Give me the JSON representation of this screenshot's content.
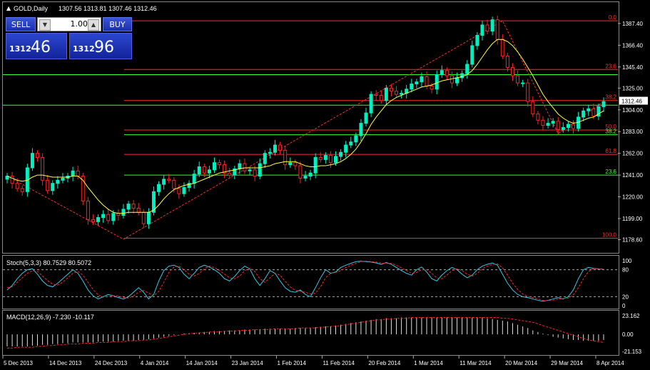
{
  "chart_data": {
    "type": "candlestick",
    "symbol_label": "GOLD,Daily",
    "ohlc_header": "1307.56 1313.81 1307.46 1312.46",
    "price_axis": {
      "min": 1170,
      "max": 1397,
      "ticks": [
        "1387.40",
        "1366.40",
        "1345.40",
        "1325.00",
        "1304.00",
        "1283.00",
        "1262.00",
        "1241.00",
        "1220.00",
        "1199.00",
        "1178.60"
      ]
    },
    "current_price_label": "1312.46",
    "date_labels": [
      "5 Dec 2013",
      "14 Dec 2013",
      "24 Dec 2013",
      "4 Jan 2014",
      "14 Jan 2014",
      "23 Jan 2014",
      "1 Feb 2014",
      "11 Feb 2014",
      "20 Feb 2014",
      "1 Mar 2014",
      "11 Mar 2014",
      "20 Mar 2014",
      "29 Mar 2014",
      "8 Apr 2014"
    ],
    "closes": [
      1240,
      1233,
      1228,
      1225,
      1248,
      1262,
      1258,
      1236,
      1226,
      1233,
      1236,
      1238,
      1240,
      1245,
      1240,
      1216,
      1198,
      1196,
      1200,
      1203,
      1197,
      1204,
      1202,
      1208,
      1213,
      1209,
      1205,
      1194,
      1205,
      1225,
      1232,
      1237,
      1236,
      1228,
      1223,
      1229,
      1233,
      1242,
      1249,
      1243,
      1246,
      1253,
      1251,
      1243,
      1241,
      1247,
      1252,
      1245,
      1246,
      1240,
      1252,
      1262,
      1263,
      1270,
      1265,
      1251,
      1253,
      1250,
      1238,
      1240,
      1243,
      1258,
      1256,
      1260,
      1253,
      1259,
      1263,
      1270,
      1273,
      1279,
      1291,
      1301,
      1319,
      1318,
      1313,
      1325,
      1322,
      1319,
      1320,
      1324,
      1329,
      1331,
      1336,
      1327,
      1324,
      1338,
      1342,
      1337,
      1330,
      1335,
      1339,
      1348,
      1366,
      1376,
      1386,
      1380,
      1391,
      1372,
      1356,
      1345,
      1337,
      1330,
      1330,
      1312,
      1300,
      1294,
      1289,
      1291,
      1293,
      1285,
      1287,
      1290,
      1286,
      1297,
      1303,
      1305,
      1298,
      1307,
      1312
    ],
    "ma": [
      1240,
      1238,
      1236,
      1235,
      1236,
      1239,
      1241,
      1241,
      1240,
      1239,
      1239,
      1239,
      1239,
      1240,
      1240,
      1236,
      1229,
      1223,
      1217,
      1212,
      1208,
      1205,
      1204,
      1204,
      1205,
      1205,
      1205,
      1205,
      1205,
      1207,
      1212,
      1218,
      1223,
      1227,
      1229,
      1231,
      1232,
      1233,
      1235,
      1237,
      1239,
      1241,
      1243,
      1244,
      1245,
      1246,
      1247,
      1248,
      1248,
      1248,
      1248,
      1249,
      1250,
      1252,
      1253,
      1254,
      1254,
      1254,
      1252,
      1250,
      1249,
      1249,
      1250,
      1250,
      1251,
      1252,
      1254,
      1257,
      1261,
      1266,
      1273,
      1281,
      1290,
      1297,
      1303,
      1309,
      1313,
      1316,
      1318,
      1320,
      1322,
      1324,
      1326,
      1327,
      1328,
      1330,
      1332,
      1333,
      1334,
      1335,
      1336,
      1338,
      1342,
      1348,
      1355,
      1362,
      1368,
      1372,
      1372,
      1370,
      1366,
      1360,
      1353,
      1345,
      1337,
      1328,
      1319,
      1312,
      1306,
      1300,
      1296,
      1293,
      1291,
      1292,
      1294,
      1296,
      1297,
      1300,
      1303
    ],
    "zigzag": [
      [
        0,
        1240
      ],
      [
        23,
        1179
      ],
      [
        98,
        1390
      ],
      [
        109,
        1281
      ],
      [
        118,
        1312
      ]
    ],
    "fib_levels": [
      {
        "label": "0.0",
        "price": 1390,
        "color": "#ff2a2a"
      },
      {
        "label": "23.6",
        "price": 1343,
        "color": "#ff2a2a"
      },
      {
        "label": "38.2",
        "price": 1313,
        "color": "#ff2a2a"
      },
      {
        "label": "50.0",
        "price": 1284.5,
        "color": "#ff2a2a"
      },
      {
        "label": "38.2",
        "price": 1280,
        "color": "#33ff33"
      },
      {
        "label": "61.8",
        "price": 1261,
        "color": "#ff2a2a"
      },
      {
        "label": "23.6",
        "price": 1241,
        "color": "#33ff33"
      },
      {
        "label": "100.0",
        "price": 1180,
        "color": "#ff2a2a"
      }
    ],
    "green_lines": [
      1338,
      1308.5
    ],
    "stoch": {
      "label": "Stoch(5,3,3) 80.7529 80.5072",
      "axis": [
        "100",
        "80",
        "20",
        "0"
      ],
      "k": [
        35,
        45,
        60,
        72,
        80,
        82,
        70,
        55,
        45,
        42,
        50,
        60,
        70,
        80,
        72,
        55,
        35,
        22,
        15,
        20,
        25,
        22,
        18,
        15,
        20,
        30,
        40,
        30,
        15,
        25,
        55,
        78,
        88,
        90,
        85,
        70,
        60,
        72,
        85,
        90,
        86,
        80,
        72,
        60,
        55,
        65,
        78,
        88,
        82,
        60,
        45,
        60,
        78,
        72,
        55,
        40,
        32,
        30,
        35,
        25,
        20,
        40,
        62,
        80,
        72,
        75,
        85,
        90,
        94,
        98,
        99,
        98,
        97,
        95,
        92,
        96,
        92,
        85,
        78,
        72,
        68,
        80,
        86,
        75,
        60,
        55,
        68,
        78,
        85,
        80,
        70,
        62,
        68,
        80,
        88,
        92,
        95,
        90,
        70,
        50,
        35,
        25,
        20,
        18,
        15,
        12,
        10,
        12,
        15,
        18,
        15,
        20,
        35,
        60,
        80,
        85,
        83,
        82,
        81
      ],
      "d": [
        40,
        42,
        52,
        62,
        72,
        78,
        76,
        66,
        56,
        48,
        46,
        52,
        62,
        72,
        76,
        68,
        52,
        36,
        24,
        19,
        20,
        22,
        22,
        18,
        17,
        22,
        30,
        34,
        28,
        22,
        32,
        52,
        74,
        86,
        88,
        80,
        70,
        66,
        72,
        82,
        88,
        85,
        78,
        70,
        62,
        60,
        66,
        78,
        84,
        76,
        60,
        52,
        62,
        72,
        68,
        54,
        42,
        34,
        32,
        30,
        26,
        28,
        42,
        62,
        72,
        74,
        78,
        85,
        90,
        94,
        98,
        99,
        98,
        97,
        95,
        94,
        94,
        90,
        84,
        78,
        72,
        74,
        80,
        80,
        72,
        62,
        60,
        68,
        78,
        82,
        78,
        70,
        66,
        72,
        82,
        88,
        92,
        93,
        84,
        68,
        50,
        36,
        26,
        21,
        18,
        15,
        12,
        11,
        12,
        15,
        16,
        17,
        24,
        40,
        60,
        76,
        82,
        82,
        81
      ]
    },
    "macd": {
      "label": "MACD(12,26,9) -7.230 -10.117",
      "axis": [
        "23.162",
        "0.00",
        "-21.153"
      ],
      "hist": [
        -15,
        -15,
        -15,
        -15,
        -15,
        -14,
        -14,
        -13,
        -13,
        -12,
        -12,
        -11,
        -11,
        -10,
        -10,
        -10,
        -10,
        -10,
        -9,
        -9,
        -9,
        -9,
        -8,
        -8,
        -8,
        -8,
        -7,
        -7,
        -6,
        -5,
        -4,
        -3,
        -2,
        -1,
        0,
        1,
        1,
        2,
        2,
        3,
        3,
        4,
        4,
        4,
        5,
        5,
        5,
        6,
        6,
        6,
        6,
        7,
        7,
        7,
        7,
        7,
        7,
        8,
        8,
        8,
        8,
        9,
        9,
        10,
        10,
        11,
        12,
        13,
        14,
        15,
        16,
        17,
        18,
        19,
        19,
        20,
        20,
        20,
        21,
        21,
        21,
        21,
        21,
        21,
        21,
        21,
        21,
        21,
        21,
        21,
        21,
        21,
        21,
        21,
        21,
        20,
        19,
        18,
        17,
        16,
        14,
        12,
        10,
        8,
        5,
        3,
        1,
        -1,
        -3,
        -4,
        -5,
        -6,
        -7,
        -7,
        -8,
        -8,
        -8,
        -8,
        -7
      ],
      "signal": [
        -17,
        -17,
        -16,
        -16,
        -16,
        -16,
        -15,
        -15,
        -14,
        -14,
        -13,
        -13,
        -12,
        -12,
        -12,
        -11,
        -11,
        -11,
        -10,
        -10,
        -10,
        -9,
        -9,
        -9,
        -8,
        -8,
        -8,
        -7,
        -7,
        -6,
        -5,
        -4,
        -3,
        -2,
        -1,
        0,
        1,
        1,
        2,
        2,
        3,
        3,
        3,
        4,
        4,
        4,
        5,
        5,
        5,
        6,
        6,
        6,
        6,
        7,
        7,
        7,
        7,
        7,
        8,
        8,
        8,
        8,
        9,
        9,
        10,
        10,
        11,
        12,
        13,
        14,
        15,
        16,
        17,
        18,
        18,
        19,
        19,
        20,
        20,
        20,
        21,
        21,
        21,
        21,
        21,
        21,
        21,
        21,
        21,
        21,
        21,
        21,
        21,
        21,
        21,
        21,
        21,
        21,
        20,
        20,
        19,
        18,
        17,
        16,
        15,
        13,
        11,
        9,
        7,
        5,
        3,
        1,
        -1,
        -3,
        -5,
        -7,
        -8,
        -9,
        -10
      ]
    }
  },
  "trade_panel": {
    "sell_label": "SELL",
    "buy_label": "BUY",
    "lot_value": "1.00",
    "sell_price_small": "1312",
    "sell_price_big": "46",
    "buy_price_small": "1312",
    "buy_price_big": "96",
    "down_arrow": "▼",
    "up_arrow": "▲"
  },
  "colors": {
    "bull": "#00f0c0",
    "bear": "#ff2222",
    "ma": "#ffff44",
    "grid": "#6a6a6a",
    "zigzag": "#ff2a2a",
    "stoch_k": "#33c8e8",
    "stoch_d": "#ff2222",
    "macd_hist": "#e0e0e0",
    "macd_signal": "#ff2222"
  }
}
